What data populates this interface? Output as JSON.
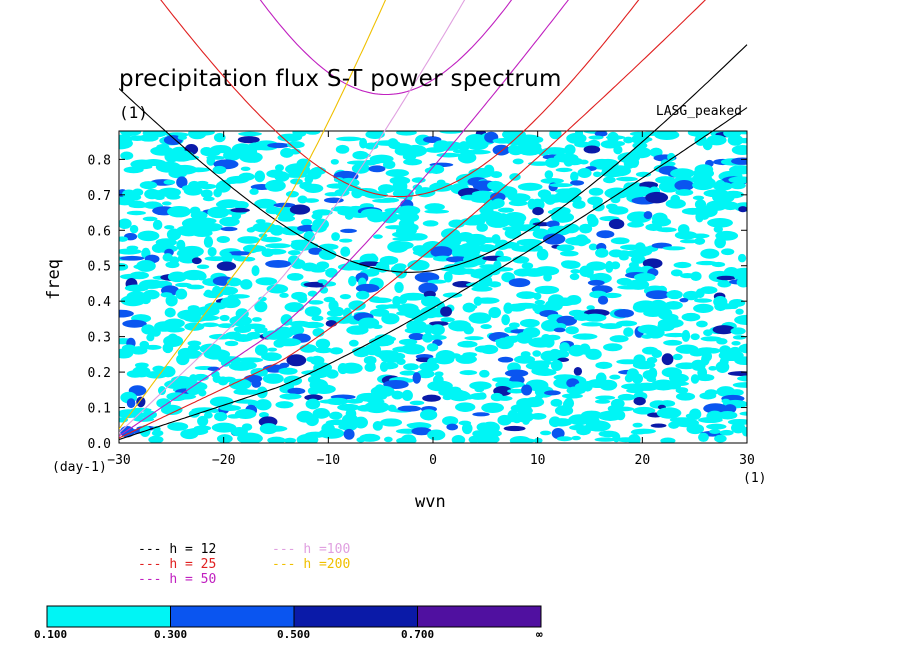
{
  "chart_data": {
    "type": "heatmap",
    "title": "precipitation flux S-T power spectrum",
    "subtitle": "(1)",
    "model_label": "LASG_peaked",
    "xlabel": "wvn",
    "ylabel": "freq",
    "x_unit_left": "(day-1)",
    "x_unit_right": "(1)",
    "xlim": [
      -30,
      30
    ],
    "ylim": [
      0,
      0.88
    ],
    "x_ticks": [
      "-30",
      "-20",
      "-10",
      "0",
      "10",
      "20",
      "30"
    ],
    "y_ticks": [
      "0.0",
      "0.1",
      "0.2",
      "0.3",
      "0.4",
      "0.5",
      "0.6",
      "0.7",
      "0.8"
    ],
    "dispersion_curves": [
      {
        "label": "h = 12",
        "h": 12,
        "color": "#000000"
      },
      {
        "label": "h = 25",
        "h": 25,
        "color": "#e02020"
      },
      {
        "label": "h = 50",
        "h": 50,
        "color": "#c020c0"
      },
      {
        "label": "h =100",
        "h": 100,
        "color": "#e0a0e0"
      },
      {
        "label": "h =200",
        "h": 200,
        "color": "#f0c000"
      }
    ],
    "colorbar": {
      "levels": [
        "0.100",
        "0.300",
        "0.500",
        "0.700",
        "∞"
      ],
      "colors": [
        "#00f5f5",
        "#0a55f0",
        "#0a1aa8",
        "#5010a0"
      ]
    }
  }
}
